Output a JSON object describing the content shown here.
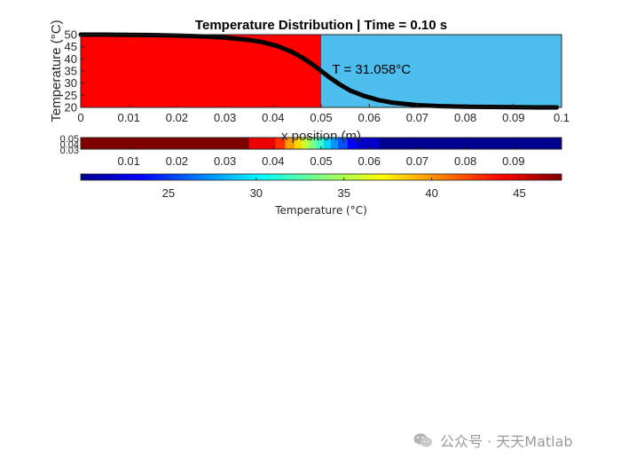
{
  "chart_data": [
    {
      "type": "area",
      "title": "Temperature Distribution | Time = 0.10 s",
      "xlabel": "x position (m)",
      "ylabel": "Temperature (°C)",
      "xlim": [
        0,
        0.1
      ],
      "ylim": [
        20,
        50
      ],
      "x_ticks": [
        "0",
        "0.01",
        "0.02",
        "0.03",
        "0.04",
        "0.05",
        "0.06",
        "0.07",
        "0.08",
        "0.09",
        "0.1"
      ],
      "y_ticks": [
        "20",
        "25",
        "30",
        "35",
        "40",
        "45",
        "50"
      ],
      "hot_region": {
        "x_range": [
          0,
          0.05
        ],
        "color": "#ff0000"
      },
      "cold_region": {
        "x_range": [
          0.05,
          0.1
        ],
        "color": "#4dbeee"
      },
      "series": [
        {
          "x": [
            0,
            0.005,
            0.01,
            0.015,
            0.02,
            0.025,
            0.03,
            0.035,
            0.038,
            0.041,
            0.044,
            0.046,
            0.048,
            0.05,
            0.052,
            0.054,
            0.056,
            0.059,
            0.062,
            0.065,
            0.07,
            0.075,
            0.08,
            0.085,
            0.09,
            0.095,
            0.099
          ],
          "values": [
            50,
            50,
            49.9,
            49.8,
            49.6,
            49.3,
            48.8,
            47.8,
            46.8,
            45.2,
            42.8,
            40.6,
            38.0,
            35.0,
            32.0,
            29.3,
            27.0,
            24.7,
            23.0,
            21.9,
            20.9,
            20.5,
            20.3,
            20.2,
            20.1,
            20.0,
            20.0
          ],
          "color": "#000000"
        }
      ],
      "annotation": {
        "text": "T = 31.058°C",
        "x": 0.051,
        "y": 35.8
      }
    },
    {
      "type": "heatmap",
      "y_ticks": [
        "0.05",
        "0.04",
        "0.03"
      ],
      "x_ticks": [
        "0.01",
        "0.02",
        "0.03",
        "0.04",
        "0.05",
        "0.06",
        "0.07",
        "0.08",
        "0.09"
      ],
      "xlim": [
        0,
        0.1
      ],
      "cells": [
        {
          "x0": 0,
          "x1": 0.035,
          "color": "#800000"
        },
        {
          "x0": 0.035,
          "x1": 0.0405,
          "color": "#ee0000"
        },
        {
          "x0": 0.0405,
          "x1": 0.0425,
          "color": "#ff3200"
        },
        {
          "x0": 0.0425,
          "x1": 0.0445,
          "color": "#ff9c00"
        },
        {
          "x0": 0.0445,
          "x1": 0.046,
          "color": "#ffd800"
        },
        {
          "x0": 0.046,
          "x1": 0.0475,
          "color": "#c7ff38"
        },
        {
          "x0": 0.0475,
          "x1": 0.049,
          "color": "#7dff82"
        },
        {
          "x0": 0.049,
          "x1": 0.0505,
          "color": "#38ffc7"
        },
        {
          "x0": 0.0505,
          "x1": 0.052,
          "color": "#00d4ff"
        },
        {
          "x0": 0.052,
          "x1": 0.0535,
          "color": "#0094ff"
        },
        {
          "x0": 0.0535,
          "x1": 0.0555,
          "color": "#0050ff"
        },
        {
          "x0": 0.0555,
          "x1": 0.0575,
          "color": "#0000ff"
        },
        {
          "x0": 0.0575,
          "x1": 0.062,
          "color": "#0000c8"
        },
        {
          "x0": 0.062,
          "x1": 0.1,
          "color": "#000090"
        }
      ],
      "colorbar": {
        "label": "Temperature (°C)",
        "ticks": [
          "25",
          "30",
          "35",
          "40",
          "45"
        ],
        "range": [
          20,
          47.4
        ]
      }
    }
  ],
  "watermark": "公众号 · 天天Matlab"
}
